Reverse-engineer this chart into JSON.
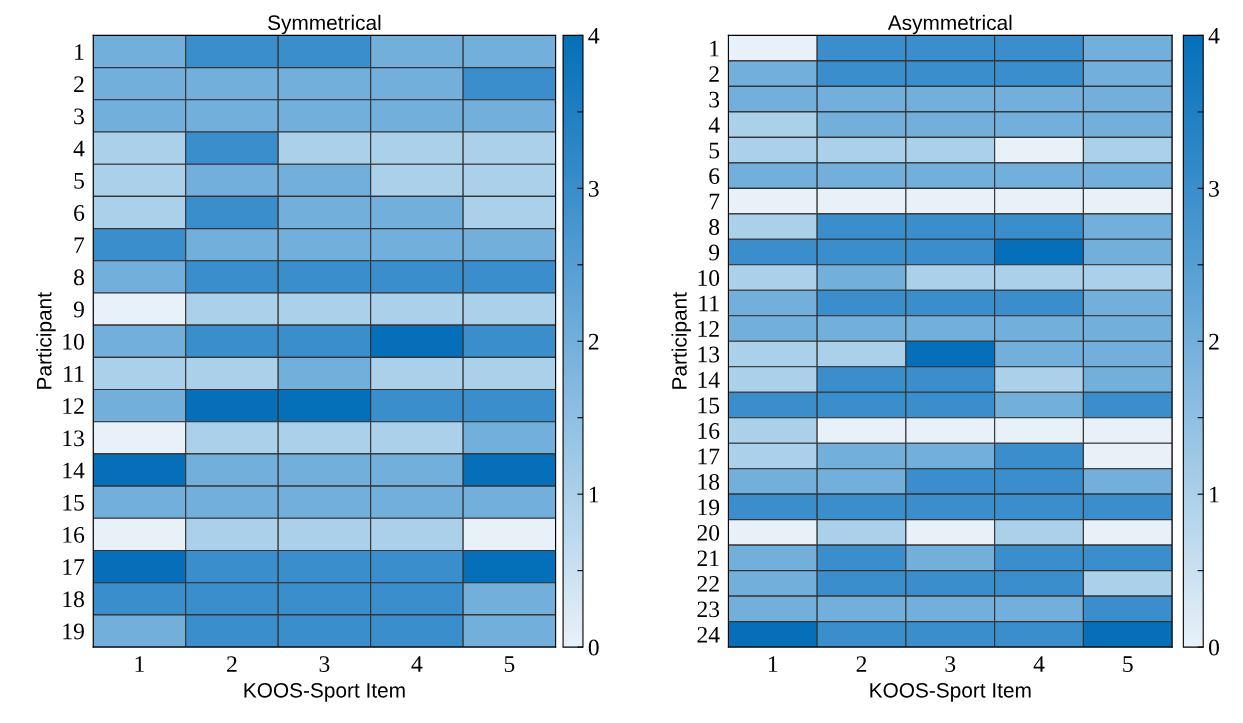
{
  "chart_data": [
    {
      "type": "heatmap",
      "title": "Symmetrical",
      "xlabel": "KOOS-Sport Item",
      "ylabel": "Participant",
      "categories": [
        "1",
        "2",
        "3",
        "4",
        "5"
      ],
      "y_categories": [
        "1",
        "2",
        "3",
        "4",
        "5",
        "6",
        "7",
        "8",
        "9",
        "10",
        "11",
        "12",
        "13",
        "14",
        "15",
        "16",
        "17",
        "18",
        "19"
      ],
      "cells": [
        [
          2,
          3,
          3,
          2,
          2
        ],
        [
          2,
          2,
          2,
          2,
          3
        ],
        [
          2,
          2,
          2,
          2,
          2
        ],
        [
          1,
          3,
          1,
          1,
          1
        ],
        [
          1,
          2,
          2,
          1,
          1
        ],
        [
          1,
          3,
          2,
          2,
          1
        ],
        [
          3,
          2,
          2,
          2,
          2
        ],
        [
          2,
          3,
          3,
          3,
          3
        ],
        [
          0,
          1,
          1,
          1,
          1
        ],
        [
          2,
          3,
          3,
          4,
          3
        ],
        [
          1,
          1,
          2,
          1,
          1
        ],
        [
          2,
          4,
          4,
          3,
          3
        ],
        [
          0,
          1,
          1,
          1,
          2
        ],
        [
          4,
          2,
          2,
          2,
          4
        ],
        [
          2,
          2,
          2,
          2,
          2
        ],
        [
          0,
          1,
          1,
          1,
          0
        ],
        [
          4,
          3,
          3,
          3,
          4
        ],
        [
          3,
          3,
          3,
          3,
          2
        ],
        [
          2,
          3,
          3,
          3,
          2
        ]
      ],
      "colors": [
        "#e8f1f8",
        "#abd0ea",
        "#72afdb",
        "#3a8ecb",
        "#0570b9"
      ],
      "clim": [
        0,
        4
      ],
      "cticks": [
        0,
        {
          "value": 0.5,
          "label": null
        },
        1,
        {
          "value": 1.5,
          "label": null
        },
        2,
        {
          "value": 2.5,
          "label": null
        },
        3,
        {
          "value": 3.5,
          "label": null
        },
        4
      ]
    },
    {
      "type": "heatmap",
      "title": "Asymmetrical",
      "xlabel": "KOOS-Sport Item",
      "ylabel": "Participant",
      "categories": [
        "1",
        "2",
        "3",
        "4",
        "5"
      ],
      "y_categories": [
        "1",
        "2",
        "3",
        "4",
        "5",
        "6",
        "7",
        "8",
        "9",
        "10",
        "11",
        "12",
        "13",
        "14",
        "15",
        "16",
        "17",
        "18",
        "19",
        "20",
        "21",
        "22",
        "23",
        "24"
      ],
      "cells": [
        [
          0,
          3,
          3,
          3,
          2
        ],
        [
          2,
          3,
          3,
          3,
          2
        ],
        [
          2,
          2,
          2,
          2,
          2
        ],
        [
          1,
          2,
          2,
          2,
          2
        ],
        [
          1,
          1,
          1,
          0,
          1
        ],
        [
          2,
          2,
          2,
          2,
          2
        ],
        [
          0,
          0,
          0,
          0,
          0
        ],
        [
          1,
          3,
          3,
          3,
          2
        ],
        [
          3,
          3,
          3,
          4,
          2
        ],
        [
          1,
          2,
          1,
          1,
          1
        ],
        [
          2,
          3,
          3,
          3,
          2
        ],
        [
          2,
          2,
          2,
          2,
          2
        ],
        [
          1,
          1,
          4,
          2,
          2
        ],
        [
          1,
          3,
          3,
          1,
          2
        ],
        [
          3,
          3,
          3,
          2,
          3
        ],
        [
          1,
          0,
          0,
          0,
          0
        ],
        [
          1,
          2,
          2,
          3,
          0
        ],
        [
          2,
          2,
          3,
          3,
          2
        ],
        [
          3,
          3,
          3,
          3,
          3
        ],
        [
          0,
          1,
          0,
          1,
          0
        ],
        [
          2,
          3,
          2,
          3,
          3
        ],
        [
          2,
          3,
          3,
          3,
          1
        ],
        [
          2,
          2,
          2,
          2,
          3
        ],
        [
          4,
          3,
          3,
          3,
          4
        ]
      ],
      "colors": [
        "#e8f1f8",
        "#abd0ea",
        "#72afdb",
        "#3a8ecb",
        "#0570b9"
      ],
      "clim": [
        0,
        4
      ],
      "cticks": [
        0,
        {
          "value": 0.5,
          "label": null
        },
        1,
        {
          "value": 1.5,
          "label": null
        },
        2,
        {
          "value": 2.5,
          "label": null
        },
        3,
        {
          "value": 3.5,
          "label": null
        },
        4
      ]
    }
  ]
}
